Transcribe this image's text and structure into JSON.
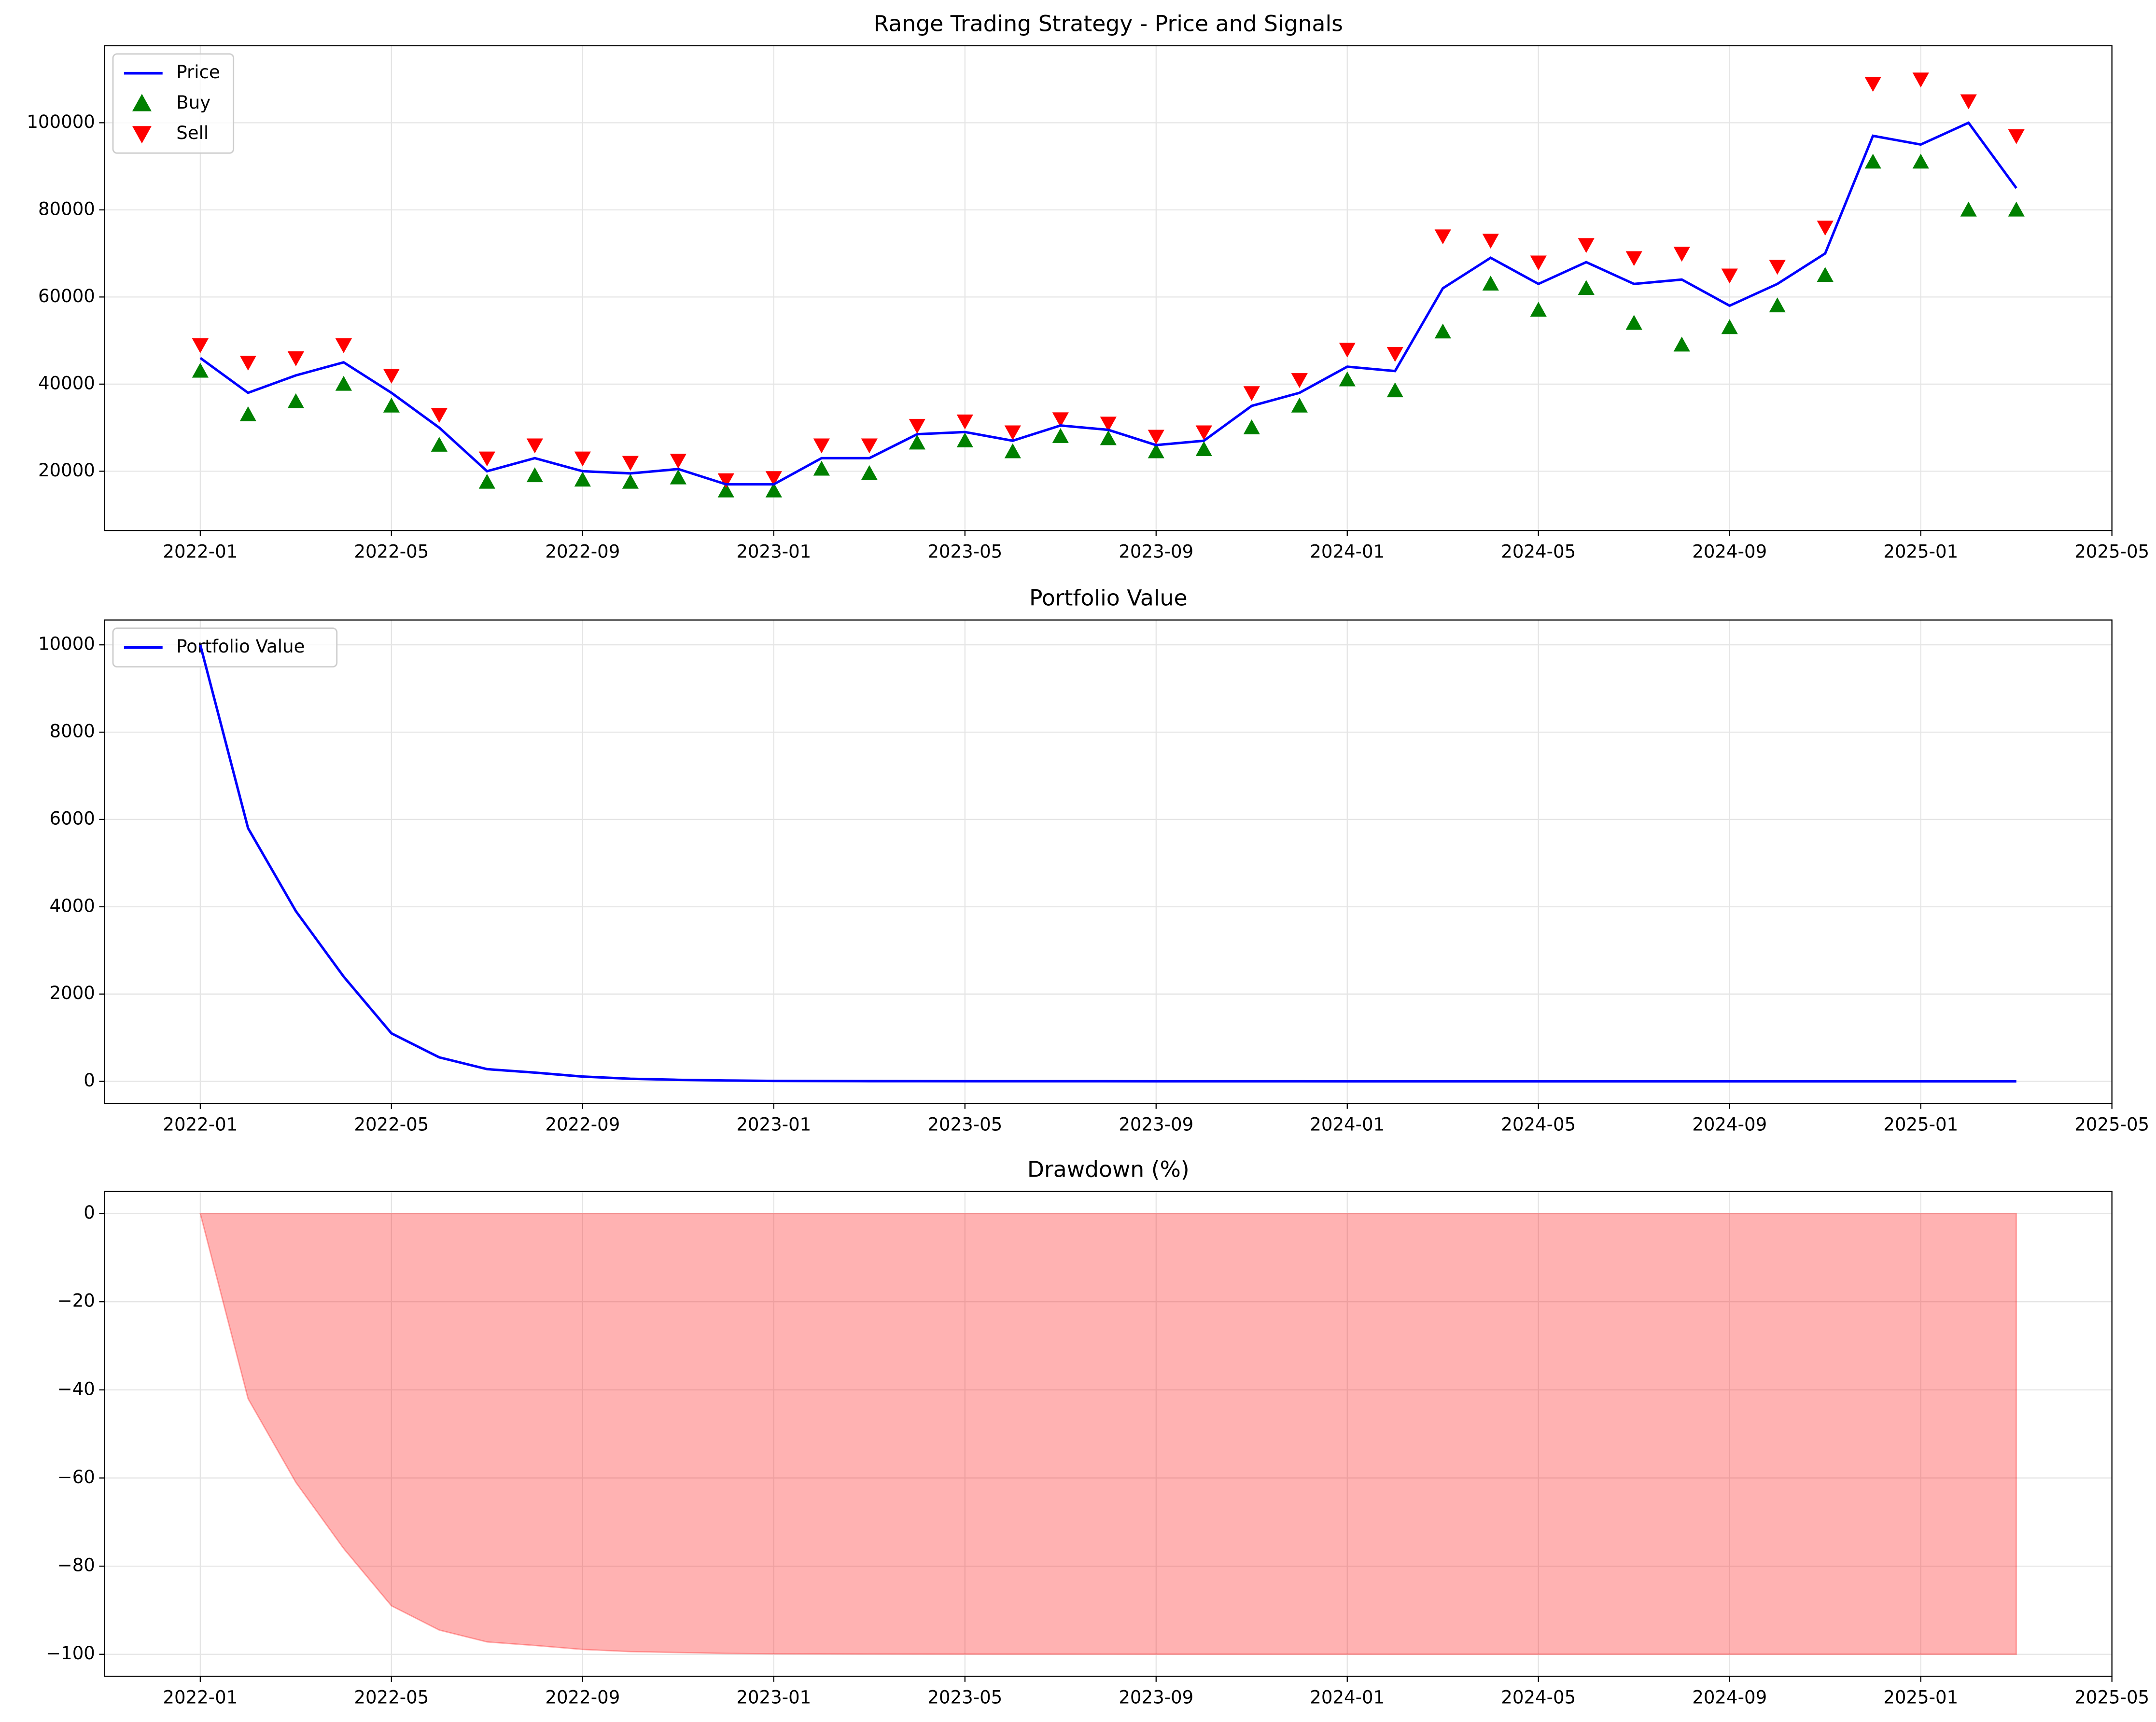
{
  "chart_data": [
    {
      "type": "line",
      "title": "Range Trading Strategy - Price and Signals",
      "grid": true,
      "legend": "upper left",
      "x": [
        "2022-01",
        "2022-02",
        "2022-03",
        "2022-04",
        "2022-05",
        "2022-06",
        "2022-07",
        "2022-08",
        "2022-09",
        "2022-10",
        "2022-11",
        "2022-12",
        "2023-01",
        "2023-02",
        "2023-03",
        "2023-04",
        "2023-05",
        "2023-06",
        "2023-07",
        "2023-08",
        "2023-09",
        "2023-10",
        "2023-11",
        "2023-12",
        "2024-01",
        "2024-02",
        "2024-03",
        "2024-04",
        "2024-05",
        "2024-06",
        "2024-07",
        "2024-08",
        "2024-09",
        "2024-10",
        "2024-11",
        "2024-12",
        "2025-01",
        "2025-02",
        "2025-03"
      ],
      "xlim": [
        "2021-11",
        "2025-05"
      ],
      "xticks": [
        "2022-01",
        "2022-05",
        "2022-09",
        "2023-01",
        "2023-05",
        "2023-09",
        "2024-01",
        "2024-05",
        "2024-09",
        "2025-01",
        "2025-05"
      ],
      "ylim": [
        6400,
        117700
      ],
      "yticks": [
        20000,
        40000,
        60000,
        80000,
        100000
      ],
      "series": [
        {
          "name": "Price",
          "color": "#0000ff",
          "marker": "line",
          "values": [
            46000,
            38000,
            42000,
            45000,
            38000,
            30000,
            20000,
            23000,
            20000,
            19500,
            20500,
            17000,
            17000,
            23000,
            23000,
            28500,
            29000,
            27000,
            30500,
            29500,
            26000,
            27000,
            35000,
            38000,
            44000,
            43000,
            62000,
            69000,
            63000,
            68000,
            63000,
            64000,
            58000,
            63000,
            70000,
            97000,
            95000,
            100000,
            85000
          ]
        },
        {
          "name": "Buy",
          "color": "#008000",
          "marker": "^",
          "values": [
            43000,
            33000,
            36000,
            40000,
            35000,
            26000,
            17500,
            19000,
            18000,
            17500,
            18500,
            15500,
            15500,
            20500,
            19500,
            26500,
            27000,
            24500,
            28000,
            27500,
            24500,
            25000,
            30000,
            35000,
            41000,
            38500,
            52000,
            63000,
            57000,
            62000,
            54000,
            49000,
            53000,
            58000,
            65000,
            91000,
            91000,
            80000,
            80000
          ]
        },
        {
          "name": "Sell",
          "color": "#ff0000",
          "marker": "v",
          "values": [
            49000,
            45000,
            46000,
            49000,
            42000,
            33000,
            23000,
            26000,
            23000,
            22000,
            22500,
            18000,
            18500,
            26000,
            26000,
            30500,
            31500,
            29000,
            32000,
            31000,
            28000,
            29000,
            38000,
            41000,
            48000,
            47000,
            74000,
            73000,
            68000,
            72000,
            69000,
            70000,
            65000,
            67000,
            76000,
            109000,
            110000,
            105000,
            97000
          ]
        }
      ]
    },
    {
      "type": "line",
      "title": "Portfolio Value",
      "grid": true,
      "legend": "upper left",
      "x": [
        "2022-01",
        "2022-02",
        "2022-03",
        "2022-04",
        "2022-05",
        "2022-06",
        "2022-07",
        "2022-08",
        "2022-09",
        "2022-10",
        "2022-11",
        "2022-12",
        "2023-01",
        "2023-03",
        "2023-06",
        "2023-09",
        "2023-12",
        "2024-03",
        "2024-06",
        "2024-09",
        "2024-12",
        "2025-03"
      ],
      "xlim": [
        "2021-11",
        "2025-05"
      ],
      "xticks": [
        "2022-01",
        "2022-05",
        "2022-09",
        "2023-01",
        "2023-05",
        "2023-09",
        "2024-01",
        "2024-05",
        "2024-09",
        "2025-01",
        "2025-05"
      ],
      "ylim": [
        -505,
        10570
      ],
      "yticks": [
        0,
        2000,
        4000,
        6000,
        8000,
        10000
      ],
      "series": [
        {
          "name": "Portfolio Value",
          "color": "#0000ff",
          "marker": "line",
          "values": [
            10000,
            5800,
            3900,
            2400,
            1100,
            550,
            280,
            200,
            110,
            60,
            35,
            20,
            10,
            5,
            3,
            2,
            1,
            0,
            0,
            0,
            0,
            0
          ]
        }
      ]
    },
    {
      "type": "area",
      "title": "Drawdown (%)",
      "grid": true,
      "x": [
        "2022-01",
        "2022-02",
        "2022-03",
        "2022-04",
        "2022-05",
        "2022-06",
        "2022-07",
        "2022-08",
        "2022-09",
        "2022-10",
        "2022-11",
        "2022-12",
        "2023-01",
        "2023-03",
        "2023-06",
        "2023-09",
        "2023-12",
        "2024-03",
        "2024-06",
        "2024-09",
        "2024-12",
        "2025-03"
      ],
      "xlim": [
        "2021-11",
        "2025-05"
      ],
      "xticks": [
        "2022-01",
        "2022-05",
        "2022-09",
        "2023-01",
        "2023-05",
        "2023-09",
        "2024-01",
        "2024-05",
        "2024-09",
        "2025-01",
        "2025-05"
      ],
      "ylim": [
        -105,
        5
      ],
      "yticks": [
        0,
        {
          "value": -20,
          "label": "−20"
        },
        {
          "value": -40,
          "label": "−40"
        },
        {
          "value": -60,
          "label": "−60"
        },
        {
          "value": -80,
          "label": "−80"
        },
        {
          "value": -100,
          "label": "−100"
        }
      ],
      "series": [
        {
          "color": "#ff0000",
          "values": [
            0,
            -42,
            -61,
            -76,
            -89,
            -94.5,
            -97.2,
            -98,
            -98.9,
            -99.4,
            -99.6,
            -99.8,
            -99.9,
            -99.95,
            -99.97,
            -99.98,
            -99.99,
            -100,
            -100,
            -100,
            -100,
            -100
          ]
        }
      ]
    }
  ]
}
